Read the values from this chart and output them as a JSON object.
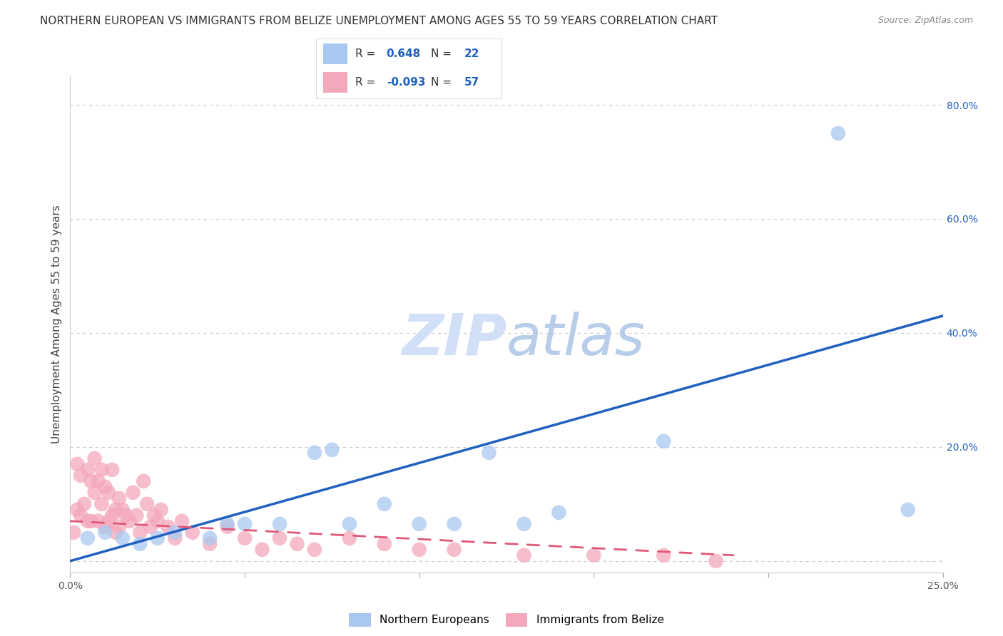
{
  "title": "NORTHERN EUROPEAN VS IMMIGRANTS FROM BELIZE UNEMPLOYMENT AMONG AGES 55 TO 59 YEARS CORRELATION CHART",
  "source": "Source: ZipAtlas.com",
  "ylabel": "Unemployment Among Ages 55 to 59 years",
  "xlim": [
    0.0,
    0.25
  ],
  "ylim": [
    -0.02,
    0.85
  ],
  "x_ticks": [
    0.0,
    0.05,
    0.1,
    0.15,
    0.2,
    0.25
  ],
  "y_ticks": [
    0.0,
    0.2,
    0.4,
    0.6,
    0.8
  ],
  "grid_color": "#cccccc",
  "background_color": "#ffffff",
  "blue_R": 0.648,
  "blue_N": 22,
  "pink_R": -0.093,
  "pink_N": 57,
  "blue_color": "#a8c8f0",
  "pink_color": "#f4a8bc",
  "blue_line_color": "#2060c0",
  "pink_line_color": "#e05878",
  "blue_scatter_x": [
    0.005,
    0.01,
    0.015,
    0.02,
    0.025,
    0.03,
    0.04,
    0.045,
    0.05,
    0.06,
    0.07,
    0.075,
    0.08,
    0.09,
    0.1,
    0.11,
    0.12,
    0.13,
    0.14,
    0.17,
    0.22,
    0.24
  ],
  "blue_scatter_y": [
    0.04,
    0.05,
    0.04,
    0.03,
    0.04,
    0.05,
    0.04,
    0.065,
    0.065,
    0.065,
    0.19,
    0.195,
    0.065,
    0.1,
    0.065,
    0.065,
    0.19,
    0.065,
    0.085,
    0.21,
    0.75,
    0.09
  ],
  "pink_scatter_x": [
    0.001,
    0.002,
    0.002,
    0.003,
    0.003,
    0.004,
    0.005,
    0.005,
    0.006,
    0.006,
    0.007,
    0.007,
    0.008,
    0.008,
    0.009,
    0.009,
    0.01,
    0.01,
    0.011,
    0.011,
    0.012,
    0.012,
    0.013,
    0.013,
    0.014,
    0.014,
    0.015,
    0.016,
    0.017,
    0.018,
    0.019,
    0.02,
    0.021,
    0.022,
    0.023,
    0.024,
    0.025,
    0.026,
    0.028,
    0.03,
    0.032,
    0.035,
    0.04,
    0.045,
    0.05,
    0.055,
    0.06,
    0.065,
    0.07,
    0.08,
    0.09,
    0.1,
    0.11,
    0.13,
    0.15,
    0.17,
    0.185
  ],
  "pink_scatter_y": [
    0.05,
    0.17,
    0.09,
    0.15,
    0.08,
    0.1,
    0.16,
    0.07,
    0.14,
    0.07,
    0.18,
    0.12,
    0.14,
    0.07,
    0.16,
    0.1,
    0.13,
    0.06,
    0.12,
    0.07,
    0.16,
    0.08,
    0.09,
    0.05,
    0.11,
    0.06,
    0.09,
    0.08,
    0.07,
    0.12,
    0.08,
    0.05,
    0.14,
    0.1,
    0.06,
    0.08,
    0.07,
    0.09,
    0.06,
    0.04,
    0.07,
    0.05,
    0.03,
    0.06,
    0.04,
    0.02,
    0.04,
    0.03,
    0.02,
    0.04,
    0.03,
    0.02,
    0.02,
    0.01,
    0.01,
    0.01,
    0.0
  ],
  "blue_line_x": [
    0.0,
    0.25
  ],
  "blue_line_y": [
    0.0,
    0.43
  ],
  "pink_line_x": [
    0.0,
    0.19
  ],
  "pink_line_y": [
    0.07,
    0.01
  ],
  "legend_labels": [
    "Northern Europeans",
    "Immigrants from Belize"
  ],
  "title_fontsize": 11,
  "label_fontsize": 11,
  "tick_fontsize": 10,
  "scatter_size": 220
}
